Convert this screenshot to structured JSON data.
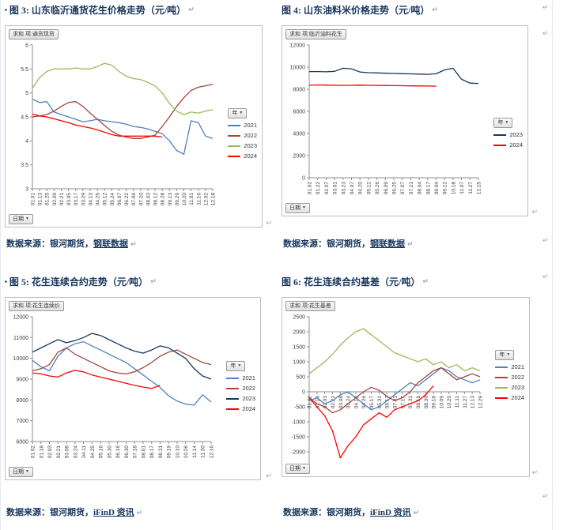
{
  "marks": {
    "pilcrow": "↵",
    "bullet": "▪",
    "dropdown": "▼"
  },
  "figures": [
    {
      "title": "图 3: 山东临沂通货花生价格走势（元/吨）",
      "source_prefix": "数据来源：银河期货，",
      "source_link": "钢联数据"
    },
    {
      "title": "图 4: 山东油料米价格走势（元/吨）",
      "source_prefix": "数据来源：银河期货，",
      "source_link": "钢联数据"
    },
    {
      "title": "图 5: 花生连续合约走势（元/吨）",
      "source_prefix": "数据来源：银河期货，",
      "source_link": "iFinD 资讯"
    },
    {
      "title": "图 6: 花生连续合约基差（元/吨）",
      "source_prefix": "数据来源：银河期货，",
      "source_link": "iFinD 资讯"
    }
  ],
  "chart_data": [
    {
      "type": "line",
      "title": "山东临沂通货花生价格走势（元/吨）",
      "pivot_field": "求和 项:通货现货",
      "legend_title": "年",
      "date_field": "日期",
      "legend_position": "right",
      "grid": false,
      "ylim": [
        3,
        6
      ],
      "y_ticks": [
        3,
        3.5,
        4,
        4.5,
        5,
        5.5,
        6
      ],
      "x_labels_at_zero": false,
      "x_labels": [
        "01.01",
        "01.13",
        "01.25",
        "02.09",
        "02.21",
        "03.05",
        "03.17",
        "03.29",
        "04.13",
        "04.25",
        "05.12",
        "05.24",
        "06.07",
        "06.22",
        "07.06",
        "07.20",
        "08.03",
        "08.12",
        "08.28",
        "09.13",
        "09.29",
        "10.20",
        "11.01",
        "11.16",
        "12.02",
        "12.18"
      ],
      "series": [
        {
          "name": "2021",
          "color": "#4F81BD",
          "values": [
            4.87,
            4.8,
            4.82,
            4.6,
            4.55,
            4.5,
            4.45,
            4.4,
            4.42,
            4.45,
            4.42,
            4.4,
            4.38,
            4.35,
            4.3,
            4.28,
            4.25,
            4.2,
            4.15,
            4.0,
            3.8,
            3.72,
            4.42,
            4.38,
            4.1,
            4.05
          ]
        },
        {
          "name": "2022",
          "color": "#A5453E",
          "values": [
            4.5,
            4.52,
            4.55,
            4.62,
            4.72,
            4.8,
            4.82,
            4.72,
            4.58,
            4.45,
            4.32,
            4.2,
            4.12,
            4.08,
            4.05,
            4.05,
            4.08,
            4.12,
            4.3,
            4.5,
            4.72,
            4.9,
            5.05,
            5.12,
            5.15,
            5.18
          ]
        },
        {
          "name": "2023",
          "color": "#9BBB59",
          "values": [
            5.1,
            5.32,
            5.45,
            5.5,
            5.5,
            5.5,
            5.52,
            5.5,
            5.5,
            5.55,
            5.62,
            5.58,
            5.45,
            5.35,
            5.3,
            5.28,
            5.22,
            5.15,
            5.0,
            4.78,
            4.62,
            4.55,
            4.6,
            4.58,
            4.62,
            4.65
          ]
        },
        {
          "name": "2024",
          "color": "#FF0000",
          "values": [
            4.56,
            4.52,
            4.5,
            4.46,
            4.42,
            4.38,
            4.33,
            4.3,
            4.27,
            4.23,
            4.18,
            4.13,
            4.1,
            4.1,
            4.1,
            4.1,
            4.1,
            4.1,
            4.08
          ]
        }
      ]
    },
    {
      "type": "line",
      "title": "山东油料米价格走势（元/吨）",
      "pivot_field": "求和 项:临沂油料花生",
      "legend_title": "年",
      "date_field": "日期",
      "legend_position": "right",
      "grid": false,
      "ylim": [
        0,
        12000
      ],
      "y_ticks": [
        0,
        2000,
        4000,
        6000,
        8000,
        10000,
        12000
      ],
      "x_labels_at_zero": false,
      "x_labels": [
        "01.02",
        "01.22",
        "02.07",
        "03.01",
        "03.23",
        "04.07",
        "04.20",
        "05.12",
        "05.26",
        "06.09",
        "06.25",
        "07.07",
        "07.21",
        "08.04",
        "08.17",
        "09.04",
        "09.22",
        "10.18",
        "11.07",
        "11.27",
        "12.15"
      ],
      "series": [
        {
          "name": "2023",
          "color": "#17375E",
          "values": [
            9600,
            9600,
            9580,
            9620,
            9900,
            9850,
            9560,
            9500,
            9480,
            9450,
            9430,
            9410,
            9390,
            9370,
            9350,
            9400,
            9750,
            9900,
            8900,
            8560,
            8520
          ]
        },
        {
          "name": "2024",
          "color": "#FF0000",
          "values": [
            8360,
            8390,
            8370,
            8360,
            8350,
            8360,
            8370,
            8360,
            8350,
            8340,
            8330,
            8320,
            8310,
            8300,
            8290,
            8280
          ]
        }
      ]
    },
    {
      "type": "line",
      "title": "花生连续合约走势（元/吨）",
      "pivot_field": "求和 项:花生连续价",
      "legend_title": "年",
      "date_field": "日期",
      "legend_position": "right",
      "grid": false,
      "ylim": [
        6000,
        12000
      ],
      "y_ticks": [
        6000,
        7000,
        8000,
        9000,
        10000,
        11000,
        12000
      ],
      "x_labels_at_zero": false,
      "x_labels": [
        "01.02",
        "01.18",
        "02.03",
        "02.21",
        "03.08",
        "03.24",
        "04.11",
        "04.25",
        "05.16",
        "05.30",
        "06.16",
        "06.30",
        "07.18",
        "08.01",
        "08.17",
        "08.31",
        "09.19",
        "10.10",
        "10.26",
        "11.14",
        "11.30",
        "12.16"
      ],
      "series": [
        {
          "name": "2021",
          "color": "#4F81BD",
          "values": [
            9900,
            9600,
            9400,
            10100,
            10500,
            10700,
            10800,
            10600,
            10400,
            10200,
            10000,
            9800,
            9500,
            9200,
            8900,
            8600,
            8200,
            7950,
            7800,
            7750,
            8250,
            7900
          ]
        },
        {
          "name": "2022",
          "color": "#A5453E",
          "values": [
            9400,
            9500,
            9700,
            10300,
            10500,
            10200,
            10000,
            9800,
            9600,
            9400,
            9300,
            9250,
            9350,
            9550,
            9800,
            10100,
            10300,
            10400,
            10200,
            10000,
            9800,
            9700
          ]
        },
        {
          "name": "2023",
          "color": "#17375E",
          "values": [
            10300,
            10500,
            10700,
            10900,
            10750,
            10850,
            11000,
            11200,
            11100,
            10900,
            10700,
            10500,
            10350,
            10250,
            10400,
            10600,
            10500,
            10250,
            10000,
            9500,
            9150,
            9000
          ]
        },
        {
          "name": "2024",
          "color": "#FF0000",
          "values": [
            9300,
            9250,
            9150,
            9100,
            9300,
            9420,
            9350,
            9200,
            9100,
            9000,
            8900,
            8800,
            8700,
            8620,
            8550,
            8700
          ]
        }
      ]
    },
    {
      "type": "line",
      "title": "花生连续合约基差（元/吨）",
      "pivot_field": "求和 项:花生基差",
      "legend_title": "年",
      "date_field": "日期",
      "legend_position": "right",
      "grid": false,
      "ylim": [
        -2500,
        2500
      ],
      "y_ticks": [
        -2500,
        -2000,
        -1500,
        -1000,
        -500,
        0,
        500,
        1000,
        1500,
        2000,
        2500
      ],
      "x_labels_at_zero": true,
      "x_labels": [
        "01.02",
        "01.18",
        "02.03",
        "02.21",
        "03.08",
        "03.24",
        "04.12",
        "04.26",
        "05.17",
        "05.31",
        "06.17",
        "07.01",
        "07.17",
        "07.31",
        "08.16",
        "08.30",
        "09.18",
        "10.09",
        "10.25",
        "11.11",
        "11.27",
        "12.13",
        "12.29"
      ],
      "series": [
        {
          "name": "2021",
          "color": "#4F81BD",
          "values": [
            -300,
            -200,
            -400,
            -300,
            -100,
            0,
            -200,
            -400,
            -600,
            -500,
            -300,
            -100,
            100,
            300,
            200,
            400,
            600,
            800,
            700,
            500,
            400,
            300,
            400
          ]
        },
        {
          "name": "2022",
          "color": "#A5453E",
          "values": [
            -200,
            -400,
            -500,
            -700,
            -600,
            -400,
            -200,
            0,
            150,
            50,
            -150,
            -300,
            -200,
            0,
            300,
            500,
            700,
            800,
            600,
            400,
            500,
            600,
            500
          ]
        },
        {
          "name": "2023",
          "color": "#9BBB59",
          "values": [
            600,
            800,
            1000,
            1250,
            1550,
            1800,
            2000,
            2100,
            1900,
            1700,
            1500,
            1300,
            1200,
            1100,
            1000,
            1100,
            900,
            1000,
            800,
            900,
            700,
            800,
            700
          ]
        },
        {
          "name": "2024",
          "color": "#FF0000",
          "values": [
            -200,
            -500,
            -800,
            -1300,
            -2200,
            -1800,
            -1500,
            -1100,
            -900,
            -700,
            -850,
            -600,
            -500,
            -400,
            -300,
            -100,
            200
          ]
        }
      ]
    }
  ]
}
